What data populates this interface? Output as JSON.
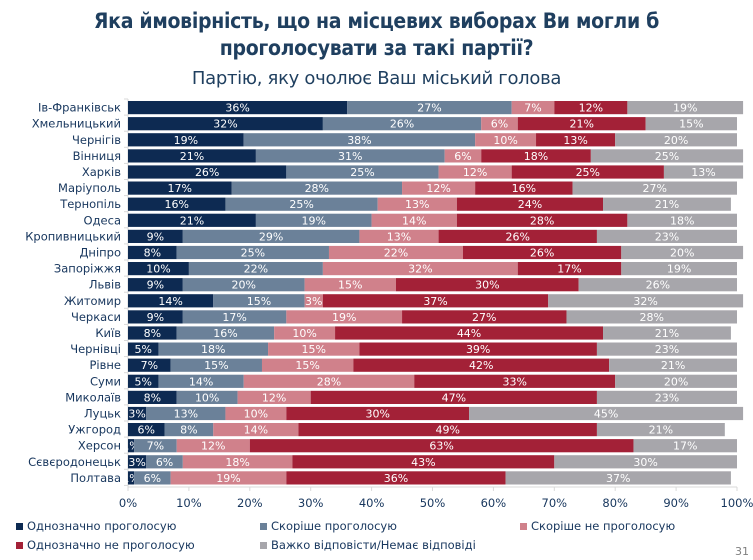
{
  "header": {
    "title_line1": "Яка ймовірність, що на місцевих виборах Ви могли б",
    "title_line2": "проголосувати за такі партії?",
    "subtitle": "Партію, яку очолює Ваш міський голова"
  },
  "page_number": "31",
  "chart_data": {
    "type": "bar",
    "orientation": "horizontal",
    "stacked": "100%",
    "title": "Яка ймовірність, що на місцевих виборах Ви могли б проголосувати за такі партії?",
    "subtitle": "Партію, яку очолює Ваш міський голова",
    "xlabel": "",
    "ylabel": "",
    "xlim": [
      0,
      100
    ],
    "x_ticks": [
      "0%",
      "10%",
      "20%",
      "30%",
      "40%",
      "50%",
      "60%",
      "70%",
      "80%",
      "90%",
      "100%"
    ],
    "grid": false,
    "legend_position": "bottom",
    "categories": [
      "Ів-Франківськ",
      "Хмельницький",
      "Чернігів",
      "Вінниця",
      "Харків",
      "Маріуполь",
      "Тернопіль",
      "Одеса",
      "Кропивницький",
      "Дніпро",
      "Запоріжжя",
      "Львів",
      "Житомир",
      "Черкаси",
      "Київ",
      "Чернівці",
      "Рівне",
      "Суми",
      "Миколаїв",
      "Луцьк",
      "Ужгород",
      "Херсон",
      "Сєвєродонецьк",
      "Полтава"
    ],
    "series": [
      {
        "name": "Однозначно проголосую",
        "color": "#0d2a52",
        "values": [
          36,
          32,
          19,
          21,
          26,
          17,
          16,
          21,
          9,
          8,
          10,
          9,
          14,
          9,
          8,
          5,
          7,
          5,
          8,
          3,
          6,
          1,
          3,
          1
        ]
      },
      {
        "name": "Скоріше проголосую",
        "color": "#6b8199",
        "values": [
          27,
          26,
          38,
          31,
          25,
          28,
          25,
          19,
          29,
          25,
          22,
          20,
          15,
          17,
          16,
          18,
          15,
          14,
          10,
          13,
          8,
          7,
          6,
          6
        ]
      },
      {
        "name": "Скоріше не проголосую",
        "color": "#d0818b",
        "values": [
          7,
          6,
          10,
          6,
          12,
          12,
          13,
          14,
          13,
          22,
          32,
          15,
          3,
          19,
          10,
          15,
          15,
          28,
          12,
          10,
          14,
          12,
          18,
          19
        ]
      },
      {
        "name": "Однозначно не проголосую",
        "color": "#a32137",
        "values": [
          12,
          21,
          13,
          18,
          25,
          16,
          24,
          28,
          26,
          26,
          17,
          30,
          37,
          27,
          44,
          39,
          42,
          33,
          47,
          30,
          49,
          63,
          43,
          36
        ]
      },
      {
        "name": "Важко відповісти/Немає відповіді",
        "color": "#a7a6ab",
        "values": [
          19,
          15,
          20,
          25,
          13,
          27,
          21,
          18,
          23,
          20,
          19,
          26,
          32,
          28,
          21,
          23,
          21,
          20,
          23,
          45,
          21,
          17,
          30,
          37
        ]
      }
    ]
  },
  "legend": {
    "items": [
      {
        "label": "Однозначно проголосую",
        "color": "#0d2a52"
      },
      {
        "label": "Скоріше проголосую",
        "color": "#6b8199"
      },
      {
        "label": "Скоріше не проголосую",
        "color": "#d0818b"
      },
      {
        "label": "Однозначно не проголосую",
        "color": "#a32137"
      },
      {
        "label": "Важко відповісти/Немає відповіді",
        "color": "#a7a6ab"
      }
    ]
  }
}
